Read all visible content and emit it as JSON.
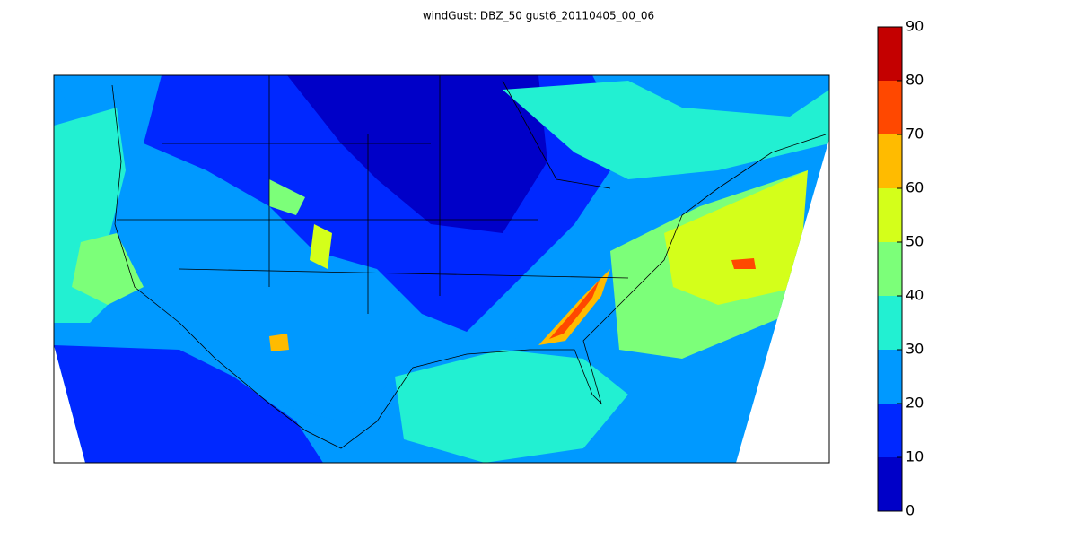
{
  "title": "windGust: DBZ_50 gust6_20110405_00_06",
  "colorbar": {
    "ticks": [
      0,
      10,
      20,
      30,
      40,
      50,
      60,
      70,
      80,
      90
    ],
    "colors": [
      "#0000c8",
      "#0028ff",
      "#0099ff",
      "#22f0d2",
      "#7cff79",
      "#d4ff1a",
      "#ffbb00",
      "#ff4800",
      "#c40000"
    ]
  }
}
